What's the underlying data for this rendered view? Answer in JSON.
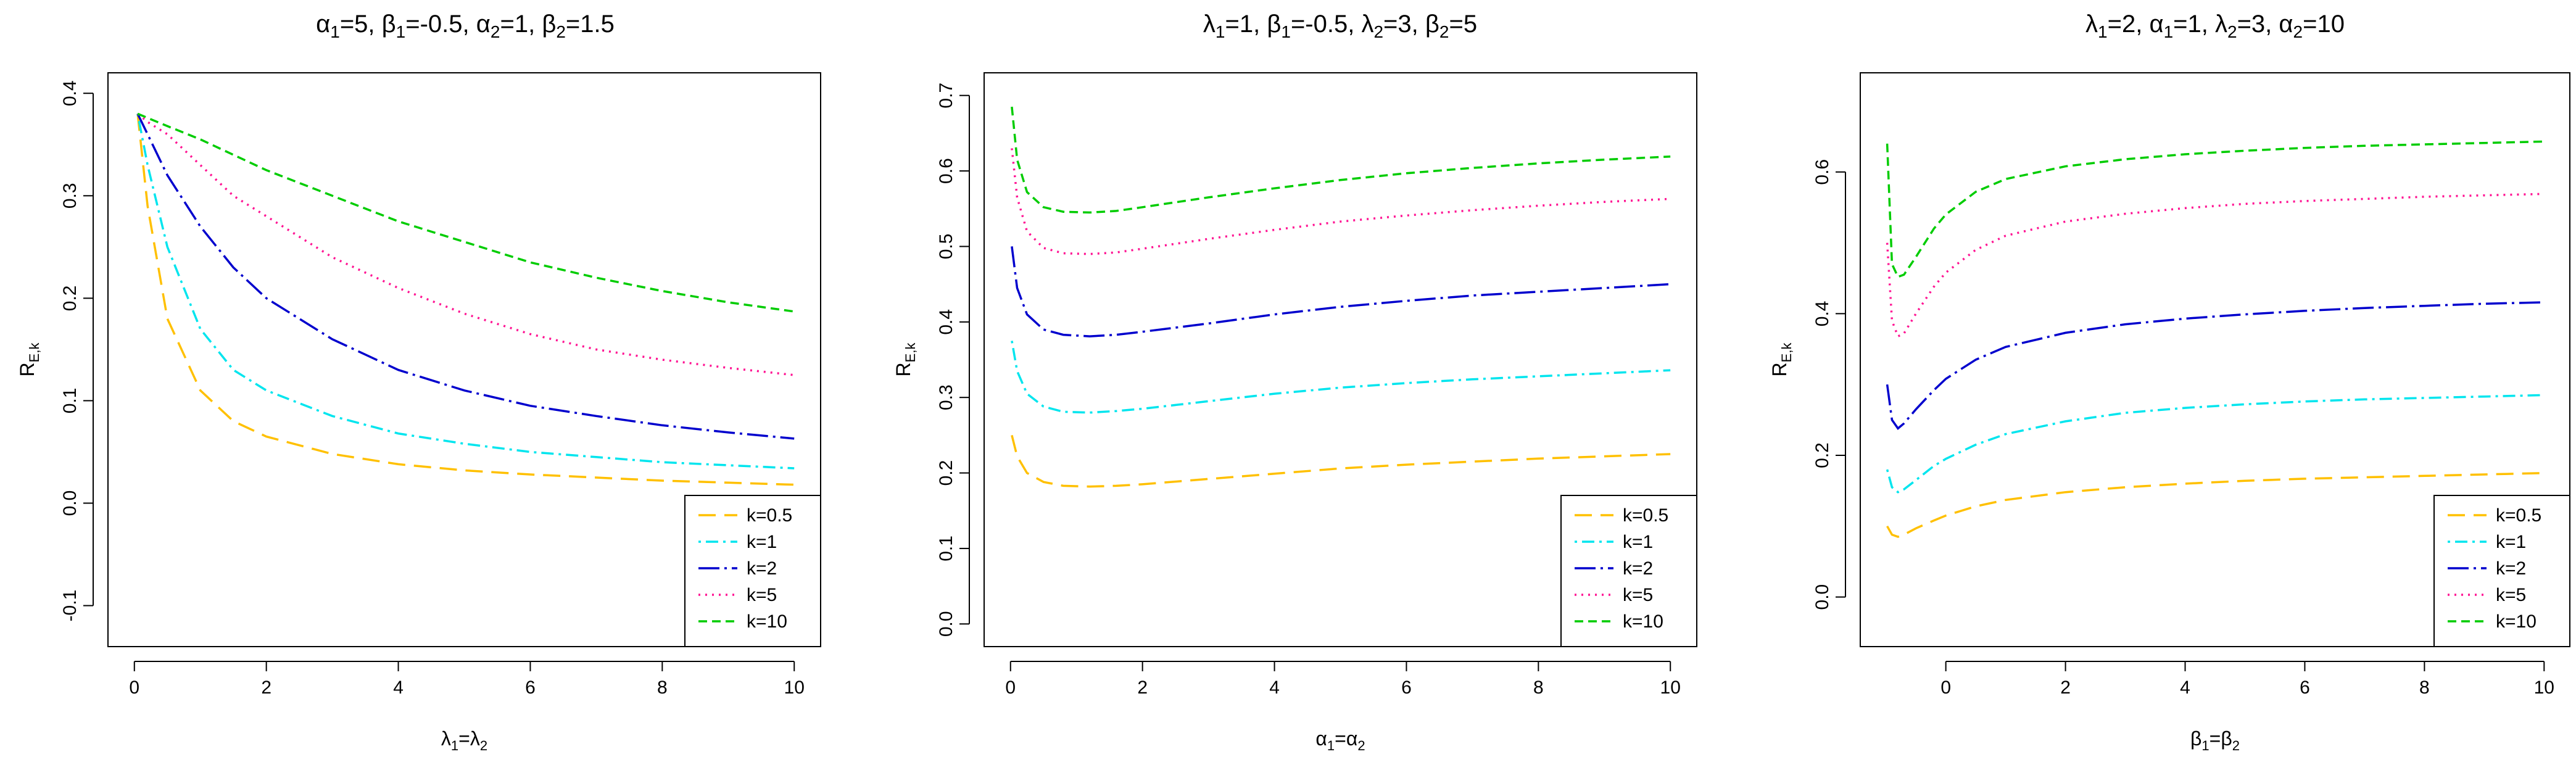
{
  "chart_data": [
    {
      "type": "line",
      "title": {
        "parts": [
          [
            "α",
            "1",
            "=5, "
          ],
          [
            "β",
            "1",
            "=-0.5, "
          ],
          [
            "α",
            "2",
            "=1, "
          ],
          [
            "β",
            "2",
            "=1.5"
          ]
        ]
      },
      "xlabel": {
        "parts": [
          [
            "λ",
            "1",
            "="
          ],
          [
            "λ",
            "2",
            ""
          ]
        ]
      },
      "ylabel": {
        "main": "R",
        "sub": "E,k"
      },
      "xlim": [
        -0.4,
        10.4
      ],
      "ylim": [
        -0.14,
        0.42
      ],
      "xticks": [
        0,
        2,
        4,
        6,
        8,
        10
      ],
      "yticks": [
        -0.1,
        0.0,
        0.1,
        0.2,
        0.3,
        0.4
      ],
      "ytick_labels": [
        "-0.1",
        "0.0",
        "0.1",
        "0.2",
        "0.3",
        "0.4"
      ],
      "legend_position": "bottom-right",
      "x": [
        0.05,
        0.2,
        0.5,
        1,
        1.5,
        2,
        3,
        4,
        5,
        6,
        7,
        8,
        9,
        10
      ],
      "series": [
        {
          "name": "k=0.5",
          "color": "#FFC000",
          "dash": "28,14",
          "values": [
            0.38,
            0.29,
            0.18,
            0.11,
            0.08,
            0.065,
            0.048,
            0.038,
            0.032,
            0.028,
            0.025,
            0.022,
            0.02,
            0.018
          ]
        },
        {
          "name": "k=1",
          "color": "#00E5EE",
          "dash": "4,8,20,8",
          "values": [
            0.38,
            0.33,
            0.25,
            0.17,
            0.13,
            0.11,
            0.085,
            0.068,
            0.058,
            0.05,
            0.045,
            0.04,
            0.037,
            0.034
          ]
        },
        {
          "name": "k=2",
          "color": "#0000CD",
          "dash": "34,8,4,8",
          "values": [
            0.38,
            0.36,
            0.32,
            0.27,
            0.23,
            0.2,
            0.16,
            0.13,
            0.11,
            0.095,
            0.085,
            0.076,
            0.069,
            0.063
          ]
        },
        {
          "name": "k=5",
          "color": "#FF1493",
          "dash": "3,8",
          "values": [
            0.38,
            0.372,
            0.36,
            0.33,
            0.3,
            0.28,
            0.24,
            0.21,
            0.185,
            0.165,
            0.15,
            0.14,
            0.132,
            0.125
          ]
        },
        {
          "name": "k=10",
          "color": "#00CC00",
          "dash": "14,8",
          "values": [
            0.38,
            0.376,
            0.368,
            0.355,
            0.34,
            0.325,
            0.3,
            0.275,
            0.255,
            0.235,
            0.22,
            0.207,
            0.196,
            0.187
          ]
        }
      ]
    },
    {
      "type": "line",
      "title": {
        "parts": [
          [
            "λ",
            "1",
            "=1, "
          ],
          [
            "β",
            "1",
            "=-0.5, "
          ],
          [
            "λ",
            "2",
            "=3, "
          ],
          [
            "β",
            "2",
            "=5"
          ]
        ]
      },
      "xlabel": {
        "parts": [
          [
            "α",
            "1",
            "="
          ],
          [
            "α",
            "2",
            ""
          ]
        ]
      },
      "ylabel": {
        "main": "R",
        "sub": "E,k"
      },
      "xlim": [
        -0.4,
        10.4
      ],
      "ylim": [
        -0.03,
        0.73
      ],
      "xticks": [
        0,
        2,
        4,
        6,
        8,
        10
      ],
      "yticks": [
        0.0,
        0.1,
        0.2,
        0.3,
        0.4,
        0.5,
        0.6,
        0.7
      ],
      "ytick_labels": [
        "0.0",
        "0.1",
        "0.2",
        "0.3",
        "0.4",
        "0.5",
        "0.6",
        "0.7"
      ],
      "legend_position": "bottom-right",
      "x": [
        0.02,
        0.1,
        0.25,
        0.5,
        0.8,
        1.2,
        1.6,
        2,
        3,
        4,
        5,
        6,
        7,
        8,
        9,
        10
      ],
      "series": [
        {
          "name": "k=0.5",
          "color": "#FFC000",
          "dash": "28,14",
          "values": [
            0.25,
            0.222,
            0.2,
            0.188,
            0.183,
            0.182,
            0.183,
            0.185,
            0.192,
            0.199,
            0.206,
            0.211,
            0.215,
            0.219,
            0.222,
            0.225
          ]
        },
        {
          "name": "k=1",
          "color": "#00E5EE",
          "dash": "4,8,20,8",
          "values": [
            0.375,
            0.335,
            0.305,
            0.288,
            0.281,
            0.28,
            0.282,
            0.285,
            0.295,
            0.305,
            0.313,
            0.319,
            0.324,
            0.328,
            0.332,
            0.336
          ]
        },
        {
          "name": "k=2",
          "color": "#0000CD",
          "dash": "34,8,4,8",
          "values": [
            0.5,
            0.445,
            0.41,
            0.39,
            0.383,
            0.381,
            0.383,
            0.387,
            0.398,
            0.41,
            0.42,
            0.428,
            0.435,
            0.44,
            0.445,
            0.45
          ]
        },
        {
          "name": "k=5",
          "color": "#FF1493",
          "dash": "3,8",
          "values": [
            0.63,
            0.565,
            0.52,
            0.498,
            0.491,
            0.49,
            0.492,
            0.497,
            0.51,
            0.522,
            0.533,
            0.541,
            0.548,
            0.554,
            0.559,
            0.563
          ]
        },
        {
          "name": "k=10",
          "color": "#00CC00",
          "dash": "14,8",
          "values": [
            0.685,
            0.615,
            0.572,
            0.552,
            0.546,
            0.545,
            0.547,
            0.552,
            0.565,
            0.577,
            0.588,
            0.597,
            0.604,
            0.61,
            0.615,
            0.619
          ]
        }
      ]
    },
    {
      "type": "line",
      "title": {
        "parts": [
          [
            "λ",
            "1",
            "=2, "
          ],
          [
            "α",
            "1",
            "=1, "
          ],
          [
            "λ",
            "2",
            "=3, "
          ],
          [
            "α",
            "2",
            "=10"
          ]
        ]
      },
      "xlabel": {
        "parts": [
          [
            "β",
            "1",
            "="
          ],
          [
            "β",
            "2",
            ""
          ]
        ]
      },
      "ylabel": {
        "main": "R",
        "sub": "E,k"
      },
      "xlim": [
        -1.43,
        10.43
      ],
      "ylim": [
        -0.07,
        0.74
      ],
      "xticks": [
        0,
        2,
        4,
        6,
        8,
        10
      ],
      "yticks": [
        0.0,
        0.2,
        0.4,
        0.6
      ],
      "ytick_labels": [
        "0.0",
        "0.2",
        "0.4",
        "0.6"
      ],
      "legend_position": "bottom-right",
      "x": [
        -0.98,
        -0.9,
        -0.8,
        -0.7,
        -0.5,
        -0.2,
        0,
        0.5,
        1,
        2,
        3,
        4,
        5,
        6,
        7,
        8,
        9,
        10
      ],
      "series": [
        {
          "name": "k=0.5",
          "color": "#FFC000",
          "dash": "28,14",
          "values": [
            0.1,
            0.088,
            0.085,
            0.088,
            0.097,
            0.108,
            0.115,
            0.128,
            0.137,
            0.148,
            0.155,
            0.16,
            0.164,
            0.167,
            0.169,
            0.171,
            0.173,
            0.175
          ]
        },
        {
          "name": "k=1",
          "color": "#00E5EE",
          "dash": "4,8,20,8",
          "values": [
            0.18,
            0.155,
            0.148,
            0.152,
            0.165,
            0.185,
            0.195,
            0.215,
            0.23,
            0.248,
            0.26,
            0.267,
            0.272,
            0.276,
            0.279,
            0.281,
            0.283,
            0.285
          ]
        },
        {
          "name": "k=2",
          "color": "#0000CD",
          "dash": "34,8,4,8",
          "values": [
            0.3,
            0.25,
            0.238,
            0.245,
            0.265,
            0.292,
            0.308,
            0.335,
            0.353,
            0.373,
            0.385,
            0.393,
            0.399,
            0.404,
            0.408,
            0.411,
            0.414,
            0.416
          ]
        },
        {
          "name": "k=5",
          "color": "#FF1493",
          "dash": "3,8",
          "values": [
            0.5,
            0.39,
            0.368,
            0.372,
            0.4,
            0.438,
            0.458,
            0.49,
            0.51,
            0.53,
            0.541,
            0.549,
            0.555,
            0.559,
            0.562,
            0.565,
            0.567,
            0.569
          ]
        },
        {
          "name": "k=10",
          "color": "#00CC00",
          "dash": "14,8",
          "values": [
            0.64,
            0.47,
            0.452,
            0.455,
            0.48,
            0.52,
            0.54,
            0.572,
            0.59,
            0.608,
            0.618,
            0.625,
            0.63,
            0.634,
            0.637,
            0.639,
            0.641,
            0.643
          ]
        }
      ]
    }
  ]
}
